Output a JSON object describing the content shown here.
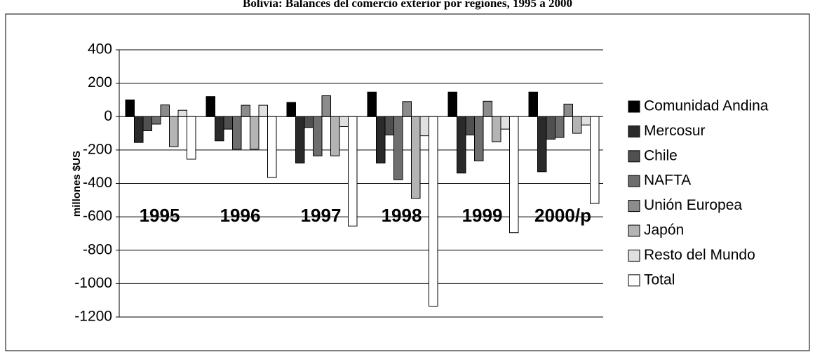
{
  "chart_data": {
    "type": "bar",
    "title": "Bolivia: Balances del comercio exterior por regiones, 1995 a 2000",
    "y_label": "millones $US",
    "categories": [
      "1995",
      "1996",
      "1997",
      "1998",
      "1999",
      "2000/p"
    ],
    "series": [
      {
        "name": "Comunidad Andina",
        "color": "#000000",
        "values": [
          100,
          120,
          85,
          147,
          147,
          147
        ]
      },
      {
        "name": "Mercosur",
        "color": "#2a2a2a",
        "values": [
          -155,
          -145,
          -278,
          -278,
          -338,
          -330
        ]
      },
      {
        "name": "Chile",
        "color": "#505050",
        "values": [
          -85,
          -75,
          -65,
          -110,
          -110,
          -135
        ]
      },
      {
        "name": "NAFTA",
        "color": "#6e6e6e",
        "values": [
          -45,
          -195,
          -235,
          -378,
          -265,
          -125
        ]
      },
      {
        "name": "Unión Europea",
        "color": "#8c8c8c",
        "values": [
          70,
          68,
          125,
          90,
          92,
          75
        ]
      },
      {
        "name": "Japón",
        "color": "#b4b4b4",
        "values": [
          -180,
          -195,
          -235,
          -490,
          -150,
          -100
        ]
      },
      {
        "name": "Resto del Mundo",
        "color": "#e0e0e0",
        "values": [
          38,
          68,
          -60,
          -115,
          -75,
          -50
        ]
      },
      {
        "name": "Total",
        "color": "#ffffff",
        "values": [
          -255,
          -365,
          -655,
          -1135,
          -695,
          -520
        ]
      }
    ],
    "ylim": [
      -1200,
      400
    ],
    "yticks": [
      -1200,
      -1000,
      -800,
      -600,
      -400,
      -200,
      0,
      200,
      400
    ],
    "grid": true,
    "legend": "right"
  }
}
